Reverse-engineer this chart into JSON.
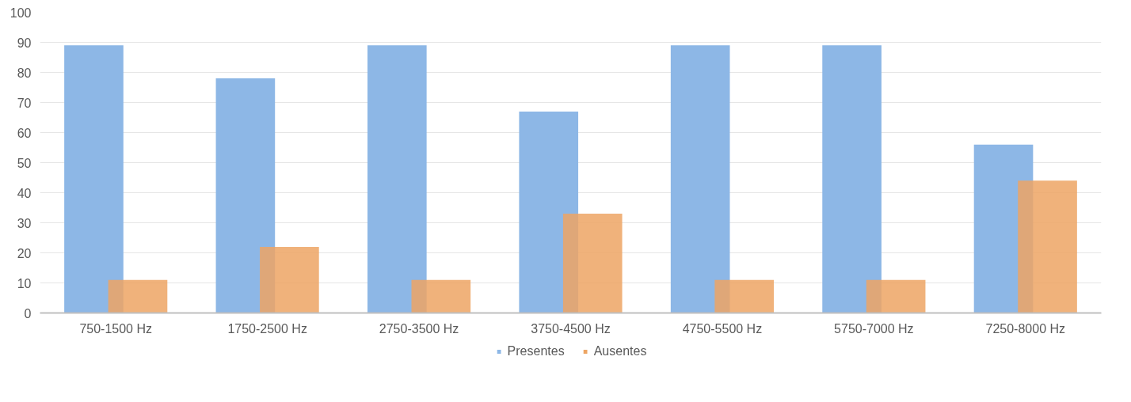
{
  "chart_data": {
    "type": "bar",
    "categories": [
      "750-1500 Hz",
      "1750-2500 Hz",
      "2750-3500 Hz",
      "3750-4500 Hz",
      "4750-5500 Hz",
      "5750-7000 Hz",
      "7250-8000 Hz"
    ],
    "series": [
      {
        "name": "Presentes",
        "color": "#8db7e6",
        "values": [
          89,
          78,
          89,
          67,
          89,
          89,
          56
        ]
      },
      {
        "name": "Ausentes",
        "color": "#eda564",
        "values": [
          11,
          22,
          11,
          33,
          11,
          11,
          44
        ]
      }
    ],
    "ylim": [
      0,
      100
    ],
    "yticks": [
      0,
      10,
      20,
      30,
      40,
      50,
      60,
      70,
      80,
      90,
      100
    ],
    "grid": "y",
    "legend": "bottom"
  }
}
